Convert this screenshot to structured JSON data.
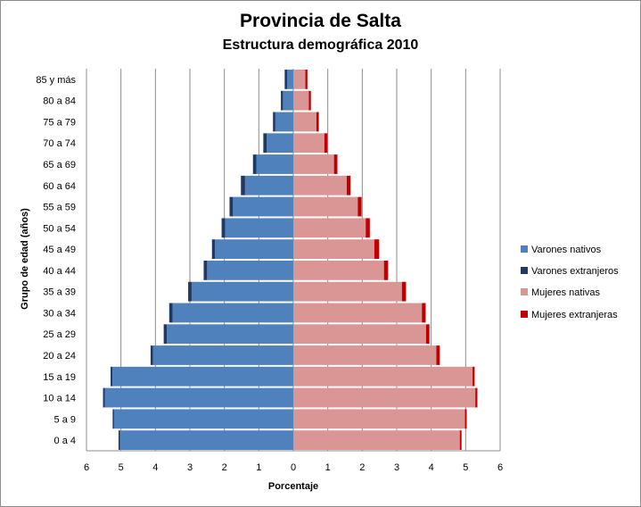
{
  "chart_data": {
    "type": "bar",
    "orientation": "horizontal-population-pyramid",
    "title": "Provincia de Salta",
    "subtitle": "Estructura demográfica 2010",
    "xlabel": "Porcentaje",
    "ylabel": "Grupo de edad (años)",
    "xlim": [
      -6,
      6
    ],
    "x_ticks": [
      "6",
      "5",
      "4",
      "3",
      "2",
      "1",
      "0",
      "1",
      "2",
      "3",
      "4",
      "5",
      "6"
    ],
    "grid": "vertical",
    "legend_position": "right",
    "categories": [
      "85 y más",
      "80 a 84",
      "75 a 79",
      "70 a 74",
      "65 a 69",
      "60 a 64",
      "55 a 59",
      "50 a 54",
      "45 a 49",
      "40 a 44",
      "35 a 39",
      "30 a 34",
      "25 a 29",
      "20 a 24",
      "15 a 19",
      "10 a 14",
      "5 a 9",
      "0 a 4"
    ],
    "series": [
      {
        "name": "Varones nativos",
        "color": "#4f81bd",
        "side": "left",
        "values": [
          0.18,
          0.3,
          0.52,
          0.77,
          1.07,
          1.4,
          1.75,
          1.98,
          2.27,
          2.5,
          2.95,
          3.5,
          3.67,
          4.07,
          5.25,
          5.47,
          5.2,
          5.03
        ]
      },
      {
        "name": "Varones extranjeros",
        "color": "#1f3864",
        "side": "left",
        "values": [
          0.07,
          0.06,
          0.07,
          0.1,
          0.1,
          0.12,
          0.1,
          0.1,
          0.09,
          0.1,
          0.1,
          0.1,
          0.09,
          0.07,
          0.05,
          0.05,
          0.04,
          0.04
        ]
      },
      {
        "name": "Mujeres nativas",
        "color": "#d99694",
        "side": "right",
        "values": [
          0.35,
          0.45,
          0.67,
          0.9,
          1.18,
          1.55,
          1.87,
          2.1,
          2.35,
          2.63,
          3.15,
          3.73,
          3.85,
          4.15,
          5.2,
          5.28,
          4.98,
          4.83
        ]
      },
      {
        "name": "Mujeres extranjeras",
        "color": "#c00000",
        "side": "right",
        "values": [
          0.06,
          0.06,
          0.07,
          0.09,
          0.1,
          0.11,
          0.11,
          0.12,
          0.14,
          0.12,
          0.12,
          0.11,
          0.1,
          0.1,
          0.06,
          0.06,
          0.05,
          0.05
        ]
      }
    ]
  }
}
